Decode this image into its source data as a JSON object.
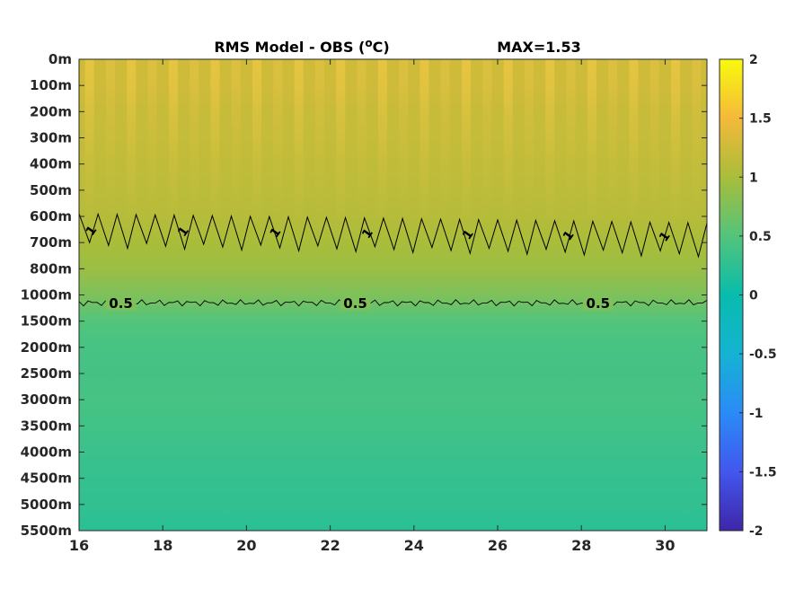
{
  "chart_data": {
    "type": "heatmap",
    "title_main": "RMS Model - OBS (",
    "title_sup": "o",
    "title_unit": "C)",
    "max_label": "MAX=1.53",
    "x_range": [
      16,
      31
    ],
    "x_ticks": [
      "16",
      "18",
      "20",
      "22",
      "24",
      "26",
      "28",
      "30"
    ],
    "x_tick_values": [
      16,
      18,
      20,
      22,
      24,
      26,
      28,
      30
    ],
    "y_ticks": [
      "0m",
      "100m",
      "200m",
      "300m",
      "400m",
      "500m",
      "600m",
      "700m",
      "800m",
      "1000m",
      "1500m",
      "2000m",
      "2500m",
      "3000m",
      "3500m",
      "4000m",
      "4500m",
      "5000m",
      "5500m"
    ],
    "colorbar": {
      "range": [
        -2,
        2
      ],
      "ticks": [
        "2",
        "1.5",
        "1",
        "0.5",
        "0",
        "-0.5",
        "-1",
        "-1.5",
        "-2"
      ],
      "tick_values": [
        2,
        1.5,
        1,
        0.5,
        0,
        -0.5,
        -1,
        -1.5,
        -2
      ],
      "colormap": "parula"
    },
    "depth_profile_level_index": [
      0,
      1,
      2,
      3,
      4,
      5,
      6,
      7,
      8,
      9,
      10,
      11,
      12,
      13,
      14,
      15,
      16,
      17,
      18
    ],
    "depth_profile_values": [
      1.25,
      1.25,
      1.2,
      1.18,
      1.15,
      1.12,
      1.08,
      1.0,
      0.92,
      0.75,
      0.5,
      0.42,
      0.4,
      0.42,
      0.38,
      0.33,
      0.3,
      0.28,
      0.22
    ],
    "contours": [
      {
        "level": 1,
        "labels": [
          "1",
          "1",
          "1",
          "1",
          "1",
          "1",
          "1"
        ],
        "label_x": [
          16.3,
          18.5,
          20.7,
          22.9,
          25.3,
          27.7,
          30.0
        ]
      },
      {
        "level": 0.5,
        "labels": [
          "0.5",
          "0.5",
          "0.5"
        ],
        "label_x": [
          17.0,
          22.6,
          28.4
        ]
      }
    ]
  }
}
